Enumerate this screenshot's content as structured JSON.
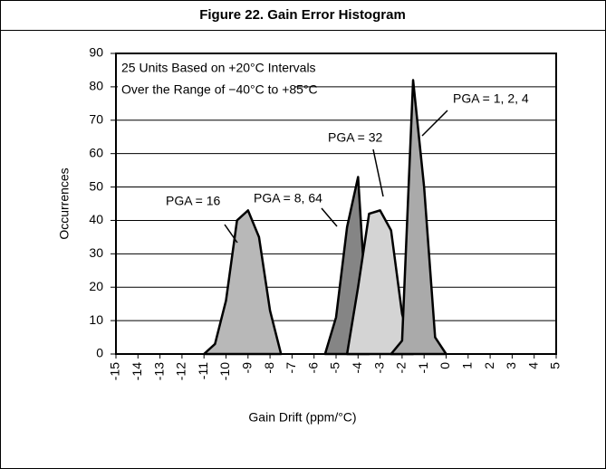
{
  "chart_data": {
    "type": "area",
    "title": "Figure 22. Gain Error Histogram",
    "xlabel": "Gain Drift (ppm/°C)",
    "ylabel": "Occurrences",
    "annotations": [
      "25 Units Based on +20°C Intervals",
      "Over the Range of −40°C to +85°C"
    ],
    "xlim": [
      -15,
      5
    ],
    "ylim": [
      0,
      90
    ],
    "xticks": [
      -15,
      -14,
      -13,
      -12,
      -11,
      -10,
      -9,
      -8,
      -7,
      -6,
      -5,
      -4,
      -3,
      -2,
      -1,
      0,
      1,
      2,
      3,
      4,
      5
    ],
    "yticks": [
      0,
      10,
      20,
      30,
      40,
      50,
      60,
      70,
      80,
      90
    ],
    "grid": true,
    "series": [
      {
        "name": "PGA = 16",
        "color": "#b8b8b8",
        "x": [
          -11,
          -10.5,
          -10,
          -9.5,
          -9,
          -8.5,
          -8,
          -7.5
        ],
        "values": [
          0,
          3,
          16,
          40,
          43,
          35,
          13,
          0
        ]
      },
      {
        "name": "PGA = 8, 64",
        "color": "#858585",
        "x": [
          -5.5,
          -5,
          -4.5,
          -4,
          -3.5
        ],
        "values": [
          0,
          11,
          38,
          53,
          0
        ]
      },
      {
        "name": "PGA = 32",
        "color": "#d4d4d4",
        "x": [
          -4.5,
          -4,
          -3.5,
          -3,
          -2.5,
          -2,
          -1.5
        ],
        "values": [
          0,
          20,
          42,
          43,
          37,
          12,
          0
        ]
      },
      {
        "name": "PGA = 1, 2, 4",
        "color": "#aaaaaa",
        "x": [
          -2.5,
          -2,
          -1.5,
          -1,
          -0.5,
          0
        ],
        "values": [
          0,
          4,
          82,
          50,
          5,
          0
        ]
      }
    ]
  }
}
